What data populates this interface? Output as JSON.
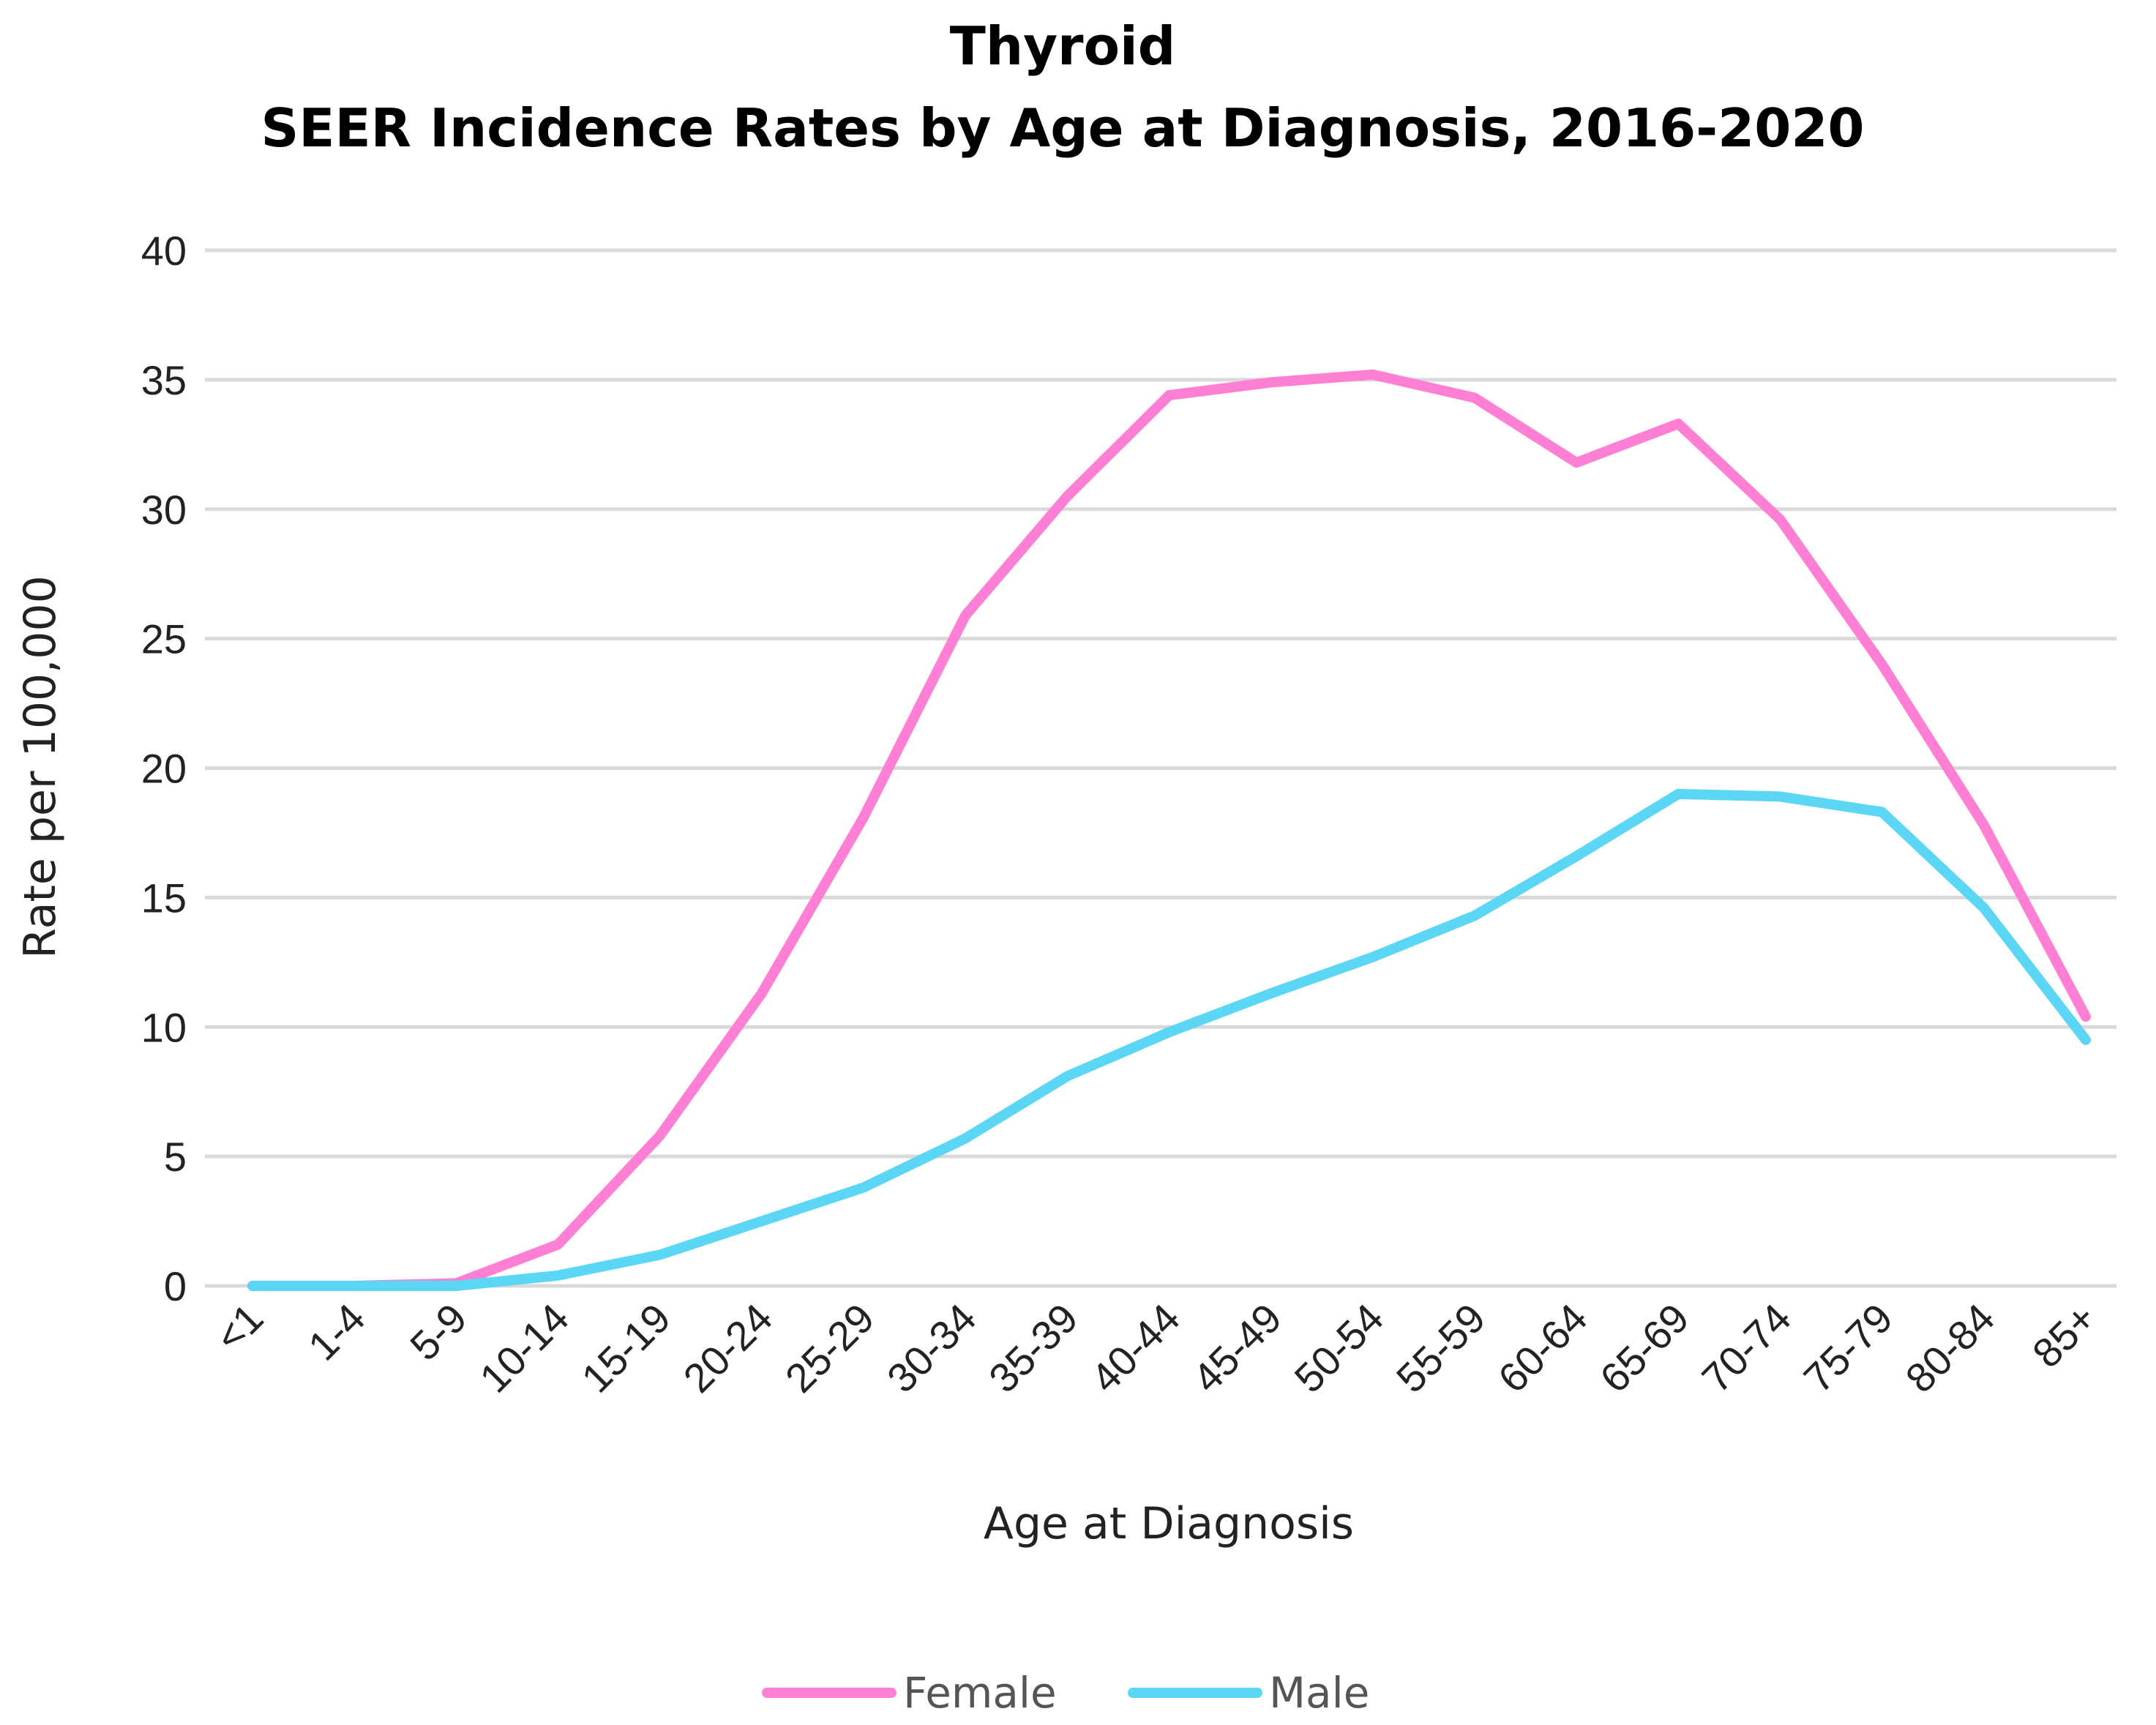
{
  "colors": {
    "female": "#ff7fd4",
    "male": "#5cd6f5"
  },
  "chart_data": {
    "type": "line",
    "title": "Thyroid",
    "subtitle": "SEER Incidence Rates by Age at Diagnosis, 2016-2020",
    "xlabel": "Age at Diagnosis",
    "ylabel": "Rate per 100,000",
    "ylim": [
      0,
      40
    ],
    "yticks": [
      "0",
      "5",
      "10",
      "15",
      "20",
      "25",
      "30",
      "35",
      "40"
    ],
    "grid": true,
    "legend_position": "bottom",
    "categories": [
      "<1",
      "1-4",
      "5-9",
      "10-14",
      "15-19",
      "20-24",
      "25-29",
      "30-34",
      "35-39",
      "40-44",
      "45-49",
      "50-54",
      "55-59",
      "60-64",
      "65-69",
      "70-74",
      "75-79",
      "80-84",
      "85+"
    ],
    "series": [
      {
        "name": "Female",
        "values": [
          0.0,
          0.0,
          0.1,
          1.6,
          5.8,
          11.3,
          18.1,
          25.9,
          30.5,
          34.4,
          34.9,
          35.2,
          34.3,
          31.8,
          33.3,
          29.6,
          24.0,
          17.8,
          10.4
        ]
      },
      {
        "name": "Male",
        "values": [
          0.0,
          0.0,
          0.0,
          0.4,
          1.2,
          2.5,
          3.8,
          5.7,
          8.1,
          9.8,
          11.3,
          12.7,
          14.3,
          16.6,
          19.0,
          18.9,
          18.3,
          14.6,
          9.5
        ]
      }
    ]
  }
}
